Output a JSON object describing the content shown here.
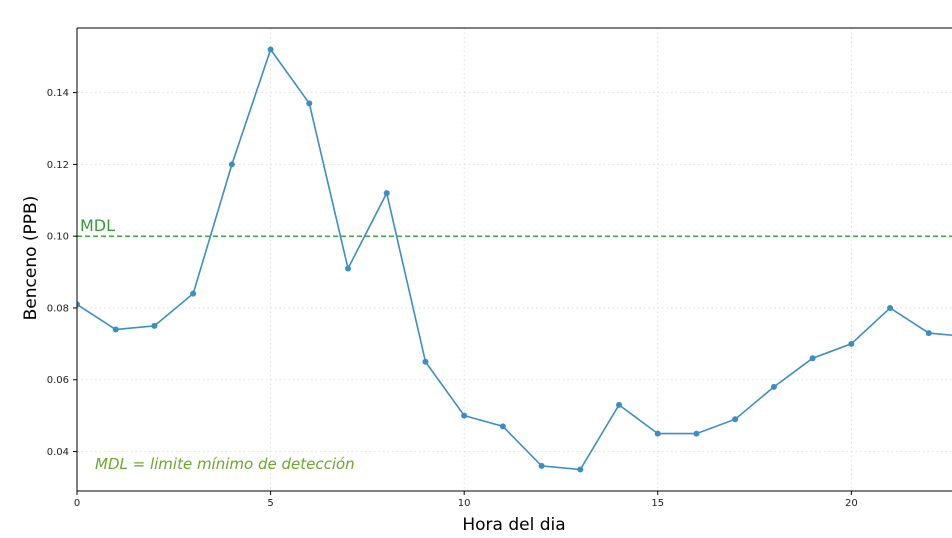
{
  "chart_data": {
    "type": "line",
    "title": "",
    "xlabel": "Hora del dia",
    "ylabel": "Benceno (PPB)",
    "xlim": [
      0,
      22.6
    ],
    "ylim": [
      0.029,
      0.158
    ],
    "xticks": [
      0,
      5,
      10,
      15,
      20
    ],
    "yticks": [
      0.04,
      0.06,
      0.08,
      0.1,
      0.12,
      0.14
    ],
    "ytick_labels": [
      "0.04",
      "0.06",
      "0.08",
      "0.10",
      "0.12",
      "0.14"
    ],
    "grid": true,
    "series": [
      {
        "x": [
          0,
          1,
          2,
          3,
          4,
          5,
          6,
          7,
          8,
          9,
          10,
          11,
          12,
          13,
          14,
          15,
          16,
          17,
          18,
          19,
          20,
          21,
          22,
          23
        ],
        "y": [
          0.081,
          0.074,
          0.075,
          0.084,
          0.12,
          0.152,
          0.137,
          0.091,
          0.112,
          0.065,
          0.05,
          0.047,
          0.036,
          0.035,
          0.053,
          0.045,
          0.045,
          0.049,
          0.058,
          0.066,
          0.07,
          0.08,
          0.073,
          0.072
        ],
        "color": "#3a8ec4"
      }
    ],
    "threshold": {
      "y": 0.1,
      "label": "MDL",
      "color": "#2ca02c"
    },
    "annotation": "MDL = limite mínimo de detección"
  }
}
